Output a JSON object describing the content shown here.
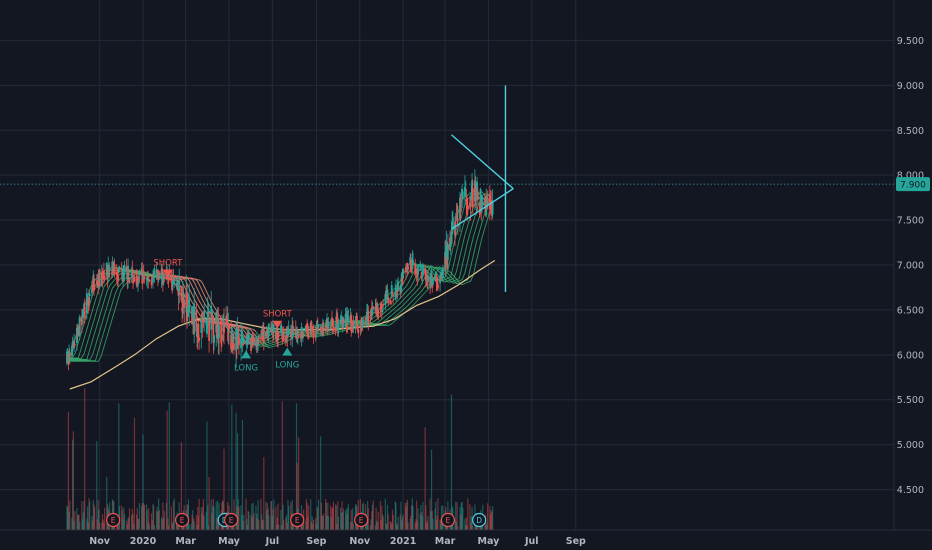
{
  "chart_data": {
    "type": "candlestick",
    "y_ticks": [
      "9.500",
      "9.000",
      "8.500",
      "8.000",
      "7.500",
      "7.000",
      "6.500",
      "6.000",
      "5.500",
      "5.000",
      "4.500"
    ],
    "y_tick_values": [
      9.5,
      9.0,
      8.5,
      8.0,
      7.5,
      7.0,
      6.5,
      6.0,
      5.5,
      5.0,
      4.5
    ],
    "ylim": [
      4.05,
      9.95
    ],
    "x_ticks": [
      "Nov",
      "2020",
      "Mar",
      "May",
      "Jul",
      "Sep",
      "Nov",
      "2021",
      "Mar",
      "May",
      "Jul",
      "Sep"
    ],
    "current_price": "7.900",
    "current_value": 7.9,
    "signals": [
      {
        "label": "SHORT",
        "kind": "short",
        "date": "2020-02-05",
        "price": 6.95
      },
      {
        "label": "LONG",
        "kind": "long",
        "date": "2020-05-25",
        "price": 6.05
      },
      {
        "label": "SHORT",
        "kind": "short",
        "date": "2020-07-08",
        "price": 6.38
      },
      {
        "label": "LONG",
        "kind": "long",
        "date": "2020-07-22",
        "price": 6.08
      }
    ],
    "events": [
      {
        "label": "E",
        "date": "2019-11-20"
      },
      {
        "label": "E",
        "date": "2020-02-25"
      },
      {
        "label": "D",
        "date": "2020-04-25"
      },
      {
        "label": "E",
        "date": "2020-05-04"
      },
      {
        "label": "E",
        "date": "2020-08-05"
      },
      {
        "label": "E",
        "date": "2020-11-03"
      },
      {
        "label": "E",
        "date": "2021-03-05"
      },
      {
        "label": "D",
        "date": "2021-04-18"
      }
    ],
    "ma200": [
      [
        "2019-09-20",
        5.62
      ],
      [
        "2019-10-20",
        5.7
      ],
      [
        "2019-11-20",
        5.85
      ],
      [
        "2019-12-20",
        6.0
      ],
      [
        "2020-01-20",
        6.18
      ],
      [
        "2020-02-20",
        6.32
      ],
      [
        "2020-03-20",
        6.4
      ],
      [
        "2020-04-20",
        6.4
      ],
      [
        "2020-05-20",
        6.35
      ],
      [
        "2020-06-20",
        6.3
      ],
      [
        "2020-07-20",
        6.28
      ],
      [
        "2020-08-20",
        6.28
      ],
      [
        "2020-09-20",
        6.28
      ],
      [
        "2020-10-20",
        6.3
      ],
      [
        "2020-11-20",
        6.32
      ],
      [
        "2020-12-20",
        6.4
      ],
      [
        "2021-01-20",
        6.55
      ],
      [
        "2021-02-20",
        6.65
      ],
      [
        "2021-03-20",
        6.78
      ],
      [
        "2021-04-20",
        6.95
      ],
      [
        "2021-05-10",
        7.05
      ]
    ],
    "ribbon_center": [
      [
        "2019-09-20",
        5.95
      ],
      [
        "2019-10-05",
        6.35
      ],
      [
        "2019-10-20",
        6.75
      ],
      [
        "2019-11-05",
        6.9
      ],
      [
        "2019-11-20",
        6.95
      ],
      [
        "2019-12-10",
        6.9
      ],
      [
        "2020-01-05",
        6.85
      ],
      [
        "2020-01-25",
        6.88
      ],
      [
        "2020-02-10",
        6.85
      ],
      [
        "2020-02-25",
        6.6
      ],
      [
        "2020-03-15",
        6.35
      ],
      [
        "2020-04-05",
        6.35
      ],
      [
        "2020-04-25",
        6.3
      ],
      [
        "2020-05-15",
        6.1
      ],
      [
        "2020-06-05",
        6.15
      ],
      [
        "2020-06-25",
        6.25
      ],
      [
        "2020-07-15",
        6.22
      ],
      [
        "2020-08-10",
        6.25
      ],
      [
        "2020-09-01",
        6.3
      ],
      [
        "2020-10-01",
        6.35
      ],
      [
        "2020-11-01",
        6.35
      ],
      [
        "2020-12-01",
        6.55
      ],
      [
        "2020-12-25",
        6.75
      ],
      [
        "2021-01-10",
        7.0
      ],
      [
        "2021-01-25",
        6.95
      ],
      [
        "2021-02-10",
        6.8
      ],
      [
        "2021-02-25",
        6.85
      ],
      [
        "2021-03-10",
        7.3
      ],
      [
        "2021-03-25",
        7.7
      ],
      [
        "2021-04-10",
        7.8
      ],
      [
        "2021-04-25",
        7.65
      ],
      [
        "2021-05-05",
        7.7
      ]
    ],
    "triangle": {
      "upper": [
        [
          "2021-03-10",
          8.45
        ],
        [
          "2021-06-05",
          7.85
        ]
      ],
      "lower": [
        [
          "2021-03-10",
          7.4
        ],
        [
          "2021-06-05",
          7.85
        ]
      ],
      "vertical": {
        "date": "2021-05-25",
        "from": 6.7,
        "to": 9.0
      }
    },
    "colors": {
      "up": "#26a69a",
      "down": "#ef5350",
      "ma200": "#e3c48c",
      "triangle": "#4dd0e1",
      "ribbon_up": "#3fbf78",
      "ribbon_down": "#f06a6a",
      "background": "#131722",
      "grid": "#252a36",
      "signal_short": "#ef5350",
      "signal_long": "#26a69a"
    }
  }
}
